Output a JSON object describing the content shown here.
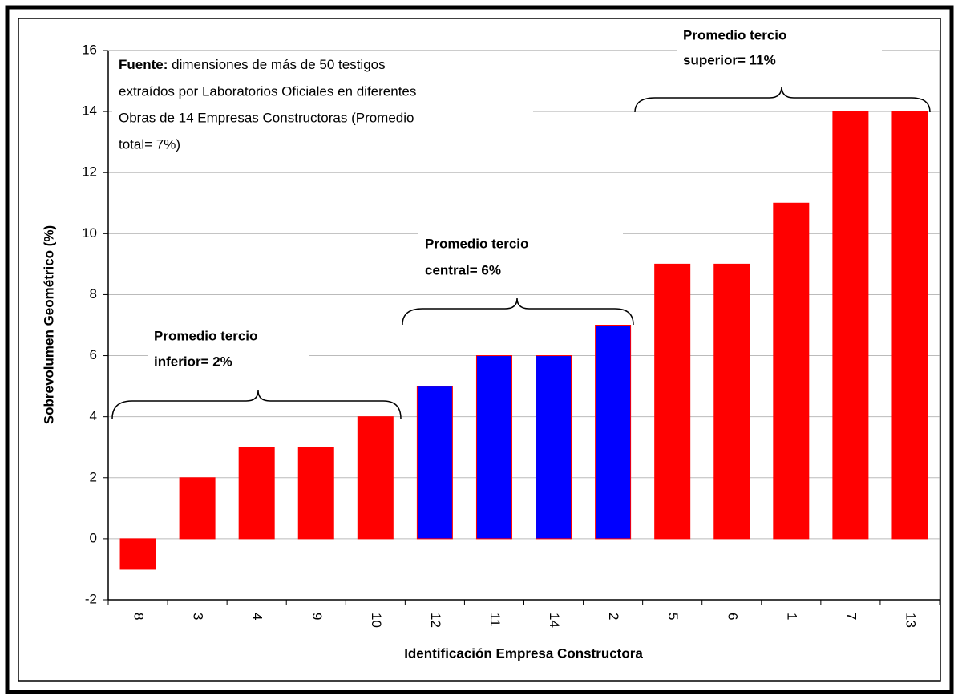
{
  "chart_data": {
    "type": "bar",
    "x_label": "Identificación Empresa Constructora",
    "y_label": "Sobrevolumen Geométrico (%)",
    "categories": [
      "8",
      "3",
      "4",
      "9",
      "10",
      "12",
      "11",
      "14",
      "2",
      "5",
      "6",
      "1",
      "7",
      "13"
    ],
    "values": [
      -1,
      2,
      3,
      3,
      4,
      5,
      6,
      6,
      7,
      9,
      9,
      11,
      14,
      14
    ],
    "colors": [
      "#ff0000",
      "#ff0000",
      "#ff0000",
      "#ff0000",
      "#ff0000",
      "#0000ff",
      "#0000ff",
      "#0000ff",
      "#0000ff",
      "#ff0000",
      "#ff0000",
      "#ff0000",
      "#ff0000",
      "#ff0000"
    ],
    "ylim": [
      -2,
      16
    ],
    "yticks": [
      -2,
      0,
      2,
      4,
      6,
      8,
      10,
      12,
      14,
      16
    ],
    "grid": true,
    "source": {
      "label": "Fuente:",
      "lines": [
        "dimensiones de más de 50 testigos",
        "extraídos por Laboratorios Oficiales en diferentes",
        "Obras de 14 Empresas Constructoras (Promedio",
        "total= 7%)"
      ]
    },
    "annotations": [
      {
        "lines": [
          "Promedio tercio",
          "inferior= 2%"
        ]
      },
      {
        "lines": [
          "Promedio tercio",
          "central= 6%"
        ]
      },
      {
        "lines": [
          "Promedio tercio",
          "superior= 11%"
        ]
      }
    ]
  }
}
